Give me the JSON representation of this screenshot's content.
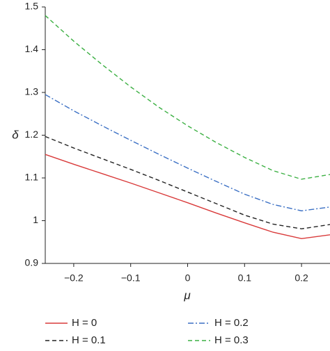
{
  "chart_data": {
    "type": "line",
    "x_label": "μ",
    "y_label": "δ",
    "x": [
      -0.25,
      -0.2,
      -0.15,
      -0.1,
      -0.05,
      0,
      0.05,
      0.1,
      0.15,
      0.2,
      0.25
    ],
    "series": [
      {
        "name": "H = 0",
        "color": "#d93a3a",
        "dash": "solid",
        "values": [
          1.155,
          1.132,
          1.11,
          1.088,
          1.065,
          1.042,
          1.018,
          0.995,
          0.973,
          0.958,
          0.967
        ]
      },
      {
        "name": "H = 0.1",
        "color": "#222222",
        "dash": "dashed",
        "values": [
          1.197,
          1.17,
          1.145,
          1.12,
          1.094,
          1.067,
          1.04,
          1.013,
          0.992,
          0.981,
          0.991
        ]
      },
      {
        "name": "H = 0.2",
        "color": "#3a6fc4",
        "dash": "dashdot",
        "values": [
          1.295,
          1.257,
          1.222,
          1.188,
          1.155,
          1.123,
          1.092,
          1.062,
          1.038,
          1.023,
          1.032
        ]
      },
      {
        "name": "H = 0.3",
        "color": "#3cb043",
        "dash": "dashed",
        "values": [
          1.48,
          1.42,
          1.365,
          1.313,
          1.265,
          1.222,
          1.183,
          1.148,
          1.117,
          1.097,
          1.108
        ]
      }
    ],
    "xlim": [
      -0.25,
      0.25
    ],
    "xticks": [
      {
        "value": -0.2,
        "label": "−0.2"
      },
      {
        "value": -0.1,
        "label": "−0.1"
      },
      0,
      0.1,
      0.2
    ],
    "ylim": [
      0.9,
      1.5
    ],
    "yticks": [
      0.9,
      1,
      1.1,
      1.2,
      1.3,
      1.4,
      1.5
    ],
    "grid": false,
    "legend": "bottom"
  }
}
